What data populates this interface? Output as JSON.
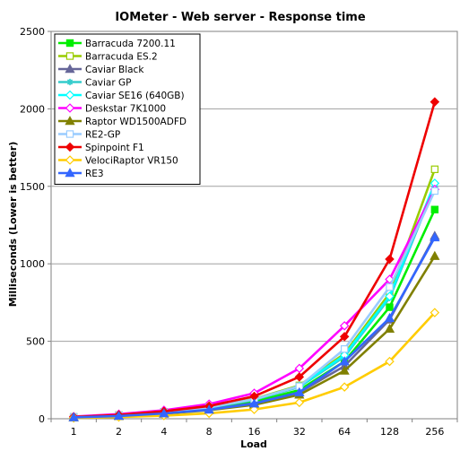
{
  "chart_data": {
    "type": "line",
    "title": "IOMeter - Web server - Response time",
    "xlabel": "Load",
    "ylabel": "Milliseconds (Lower is better)",
    "categories": [
      "1",
      "2",
      "4",
      "8",
      "16",
      "32",
      "64",
      "128",
      "256"
    ],
    "ylim": [
      0,
      2500
    ],
    "yticks": [
      "0",
      "500",
      "1000",
      "1500",
      "2000",
      "2500"
    ],
    "grid": true,
    "legend_position": "top-left",
    "series": [
      {
        "name": "Barracuda 7200.11",
        "color": "#00ee00",
        "marker": "square-filled",
        "values": [
          10,
          20,
          38,
          65,
          110,
          185,
          370,
          720,
          1350
        ]
      },
      {
        "name": "Barracuda ES.2",
        "color": "#99cc00",
        "marker": "square-open",
        "values": [
          12,
          24,
          45,
          75,
          128,
          215,
          420,
          810,
          1610
        ]
      },
      {
        "name": "Caviar Black",
        "color": "#666699",
        "marker": "triangle-filled",
        "values": [
          10,
          19,
          36,
          60,
          100,
          170,
          340,
          640,
          1180
        ]
      },
      {
        "name": "Caviar GP",
        "color": "#33cccc",
        "marker": "star",
        "values": [
          11,
          22,
          42,
          72,
          122,
          205,
          400,
          780,
          1500
        ]
      },
      {
        "name": "Caviar SE16 (640GB)",
        "color": "#00ffff",
        "marker": "diamond-open",
        "values": [
          11,
          23,
          44,
          73,
          125,
          210,
          410,
          790,
          1520
        ]
      },
      {
        "name": "Deskstar 7K1000",
        "color": "#ff00ff",
        "marker": "diamond-open",
        "values": [
          14,
          30,
          55,
          95,
          165,
          325,
          600,
          900,
          1480
        ]
      },
      {
        "name": "Raptor WD1500ADFD",
        "color": "#808000",
        "marker": "triangle-filled",
        "values": [
          8,
          17,
          32,
          55,
          90,
          155,
          310,
          580,
          1050
        ]
      },
      {
        "name": "RE2-GP",
        "color": "#99ccff",
        "marker": "square-open",
        "values": [
          12,
          23,
          43,
          74,
          126,
          210,
          450,
          850,
          1470
        ]
      },
      {
        "name": "Spinpoint F1",
        "color": "#ee0000",
        "marker": "diamond-filled",
        "values": [
          12,
          25,
          48,
          82,
          145,
          270,
          530,
          1030,
          2045
        ]
      },
      {
        "name": "VelociRaptor VR150",
        "color": "#ffcc00",
        "marker": "diamond-open",
        "values": [
          5,
          11,
          20,
          35,
          60,
          105,
          205,
          370,
          685
        ]
      },
      {
        "name": "RE3",
        "color": "#3366ff",
        "marker": "triangle-filled",
        "values": [
          9,
          18,
          34,
          58,
          98,
          170,
          370,
          650,
          1170
        ]
      }
    ]
  }
}
